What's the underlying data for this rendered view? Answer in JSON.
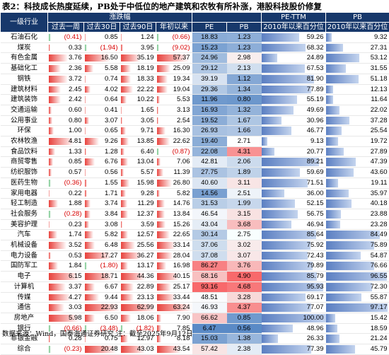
{
  "title": "表2：科技成长热度延续，PB处于中低位的地产建筑和农牧有所补涨，港股科技股价修复",
  "header": {
    "industry": "一级行业",
    "change_group": "涨跌幅",
    "pettm_group": "PE-TTM",
    "pb_group": "PB",
    "week": "过去一周",
    "d30": "过去30日",
    "d90": "过去90日",
    "ytd": "年初以来",
    "pe": "PE",
    "pb": "PB",
    "pe_pct": "2010年以来百分位",
    "pb_pct": "2010年以来百分位"
  },
  "rows": [
    {
      "name": "石油石化",
      "w": "(0.41)",
      "d30": "0.85",
      "d90": "1.24",
      "ytd": "(0.66)",
      "pe": "18.83",
      "pb": "1.23",
      "pe_pct": "59.26",
      "pb_pct": "9.32"
    },
    {
      "name": "煤炭",
      "w": "0.33",
      "d30": "(1.94)",
      "d90": "3.95",
      "ytd": "(9.02)",
      "pe": "15.23",
      "pb": "1.23",
      "pe_pct": "68.32",
      "pb_pct": "27.31"
    },
    {
      "name": "有色金属",
      "w": "3.76",
      "d30": "16.50",
      "d90": "35.19",
      "ytd": "57.37",
      "pe": "24.96",
      "pb": "2.98",
      "pe_pct": "24.89",
      "pb_pct": "53.12"
    },
    {
      "name": "基础化工",
      "w": "2.36",
      "d30": "5.58",
      "d90": "18.19",
      "ytd": "25.09",
      "pe": "29.12",
      "pb": "2.13",
      "pe_pct": "67.53",
      "pb_pct": "31.55"
    },
    {
      "name": "钢铁",
      "w": "3.72",
      "d30": "0.74",
      "d90": "18.33",
      "ytd": "19.34",
      "pe": "39.19",
      "pb": "1.12",
      "pe_pct": "81.90",
      "pb_pct": "51.18"
    },
    {
      "name": "建筑材料",
      "w": "2.45",
      "d30": "4.02",
      "d90": "22.22",
      "ytd": "19.04",
      "pe": "29.36",
      "pb": "1.34",
      "pe_pct": "77.89",
      "pb_pct": "12.13"
    },
    {
      "name": "建筑装饰",
      "w": "2.42",
      "d30": "0.64",
      "d90": "10.22",
      "ytd": "5.53",
      "pe": "11.96",
      "pb": "0.80",
      "pe_pct": "55.19",
      "pb_pct": "11.64"
    },
    {
      "name": "交通运输",
      "w": "0.60",
      "d30": "0.41",
      "d90": "1.65",
      "ytd": "3.13",
      "pe": "16.93",
      "pb": "1.32",
      "pe_pct": "49.69",
      "pb_pct": "22.02"
    },
    {
      "name": "公用事业",
      "w": "0.80",
      "d30": "3.07",
      "d90": "3.05",
      "ytd": "2.54",
      "pe": "19.52",
      "pb": "1.67",
      "pe_pct": "30.96",
      "pb_pct": "37.28"
    },
    {
      "name": "环保",
      "w": "1.00",
      "d30": "0.65",
      "d90": "9.71",
      "ytd": "16.30",
      "pe": "26.93",
      "pb": "1.66",
      "pe_pct": "46.77",
      "pb_pct": "25.54"
    },
    {
      "name": "农林牧渔",
      "w": "4.81",
      "d30": "9.26",
      "d90": "13.85",
      "ytd": "22.62",
      "pe": "19.40",
      "pb": "2.71",
      "pe_pct": "9.13",
      "pb_pct": "19.72"
    },
    {
      "name": "食品饮料",
      "w": "1.33",
      "d30": "1.28",
      "d90": "6.40",
      "ytd": "(0.87)",
      "pe": "22.08",
      "pb": "4.31",
      "pe_pct": "20.77",
      "pb_pct": "27.89"
    },
    {
      "name": "商贸零售",
      "w": "0.85",
      "d30": "6.76",
      "d90": "13.04",
      "ytd": "7.06",
      "pe": "42.81",
      "pb": "2.06",
      "pe_pct": "89.21",
      "pb_pct": "47.39"
    },
    {
      "name": "纺织服饰",
      "w": "0.57",
      "d30": "0.56",
      "d90": "5.57",
      "ytd": "11.39",
      "pe": "27.75",
      "pb": "1.89",
      "pe_pct": "59.69",
      "pb_pct": "43.60"
    },
    {
      "name": "医药生物",
      "w": "(0.36)",
      "d30": "1.55",
      "d90": "15.98",
      "ytd": "26.80",
      "pe": "40.60",
      "pb": "3.11",
      "pe_pct": "71.51",
      "pb_pct": "19.11"
    },
    {
      "name": "家用电器",
      "w": "0.22",
      "d30": "1.71",
      "d90": "9.28",
      "ytd": "5.82",
      "pe": "14.56",
      "pb": "2.51",
      "pe_pct": "36.00",
      "pb_pct": "35.97"
    },
    {
      "name": "轻工制造",
      "w": "1.88",
      "d30": "3.74",
      "d90": "11.29",
      "ytd": "14.76",
      "pe": "31.53",
      "pb": "1.99",
      "pe_pct": "52.15",
      "pb_pct": "40.18"
    },
    {
      "name": "社会服务",
      "w": "(0.28)",
      "d30": "3.84",
      "d90": "12.37",
      "ytd": "13.84",
      "pe": "46.54",
      "pb": "3.15",
      "pe_pct": "56.75",
      "pb_pct": "23.88"
    },
    {
      "name": "美容护理",
      "w": "0.23",
      "d30": "3.08",
      "d90": "3.59",
      "ytd": "15.26",
      "pe": "43.04",
      "pb": "3.68",
      "pe_pct": "46.94",
      "pb_pct": "23.28"
    },
    {
      "name": "汽车",
      "w": "1.74",
      "d30": "5.82",
      "d90": "12.57",
      "ytd": "22.65",
      "pe": "30.14",
      "pb": "2.75",
      "pe_pct": "85.64",
      "pb_pct": "84.49"
    },
    {
      "name": "机械设备",
      "w": "3.52",
      "d30": "6.48",
      "d90": "25.56",
      "ytd": "33.14",
      "pe": "37.06",
      "pb": "3.02",
      "pe_pct": "75.92",
      "pb_pct": "75.89"
    },
    {
      "name": "电力设备",
      "w": "0.53",
      "d30": "17.27",
      "d90": "36.27",
      "ytd": "28.04",
      "pe": "37.08",
      "pb": "3.07",
      "pe_pct": "72.43",
      "pb_pct": "54.87"
    },
    {
      "name": "国防军工",
      "w": "1.84",
      "d30": "(1.80)",
      "d90": "13.17",
      "ytd": "16.98",
      "pe": "86.27",
      "pb": "3.76",
      "pe_pct": "79.89",
      "pb_pct": "76.66"
    },
    {
      "name": "电子",
      "w": "6.15",
      "d30": "18.71",
      "d90": "44.36",
      "ytd": "40.15",
      "pe": "68.16",
      "pb": "4.90",
      "pe_pct": "85.79",
      "pb_pct": "96.55"
    },
    {
      "name": "计算机",
      "w": "3.37",
      "d30": "6.67",
      "d90": "22.89",
      "ytd": "25.17",
      "pe": "93.16",
      "pb": "4.68",
      "pe_pct": "95.93",
      "pb_pct": "72.30"
    },
    {
      "name": "传媒",
      "w": "4.27",
      "d30": "9.44",
      "d90": "23.13",
      "ytd": "33.44",
      "pe": "48.51",
      "pb": "3.28",
      "pe_pct": "69.17",
      "pb_pct": "55.87"
    },
    {
      "name": "通信",
      "w": "3.03",
      "d30": "22.93",
      "d90": "62.99",
      "ytd": "63.24",
      "pe": "46.93",
      "pb": "4.37",
      "pe_pct": "77.07",
      "pb_pct": "97.17"
    },
    {
      "name": "房地产",
      "w": "5.98",
      "d30": "6.50",
      "d90": "18.06",
      "ytd": "7.90",
      "pe": "66.62",
      "pb": "0.85",
      "pe_pct": "100.00",
      "pb_pct": "15.42"
    },
    {
      "name": "银行",
      "w": "(0.66)",
      "d30": "(3.48)",
      "d90": "(1.82)",
      "ytd": "7.85",
      "pe": "6.47",
      "pb": "0.56",
      "pe_pct": "48.96",
      "pb_pct": "18.59"
    },
    {
      "name": "非银金融",
      "w": "0.28",
      "d30": "0.75",
      "d90": "12.97",
      "ytd": "8.18",
      "pe": "15.03",
      "pb": "1.38",
      "pe_pct": "26.33",
      "pb_pct": "21.24"
    },
    {
      "name": "综合",
      "w": "(0.23)",
      "d30": "20.48",
      "d90": "43.03",
      "ytd": "43.54",
      "pe": "57.42",
      "pb": "2.38",
      "pe_pct": "77.39",
      "pb_pct": "45.79"
    }
  ],
  "source": "数据来源：Wind，国泰海通证券研究  注：截至2025年9月12日",
  "colors": {
    "header_bg": "#17386b",
    "bar_red": "#e8413c",
    "bar_green": "#63be7b",
    "heat_red": "#f8696b",
    "heat_blue": "#5a8ac6",
    "pct_bar": "#5b7fc2"
  }
}
